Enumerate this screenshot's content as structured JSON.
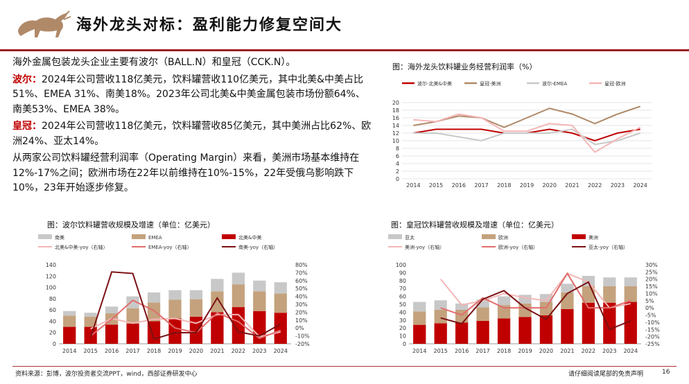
{
  "page": {
    "title": "海外龙头对标：盈利能力修复空间大",
    "paragraphs": [
      {
        "lead": "",
        "text": "海外金属包装龙头企业主要有波尔（BALL.N）和皇冠（CCK.N）。"
      },
      {
        "lead": "波尔：",
        "text": "2024年公司营收118亿美元，饮料罐营收110亿美元，其中北美&中美占比51%、EMEA 31%、南美18%。2023年公司北美&中美金属包装市场份额64%、南美53%、EMEA 38%。"
      },
      {
        "lead": "皇冠：",
        "text": "2024年公司营收118亿美元，饮料罐营收85亿美元，其中美洲占比62%、欧洲24%、亚太14%。"
      },
      {
        "lead": "",
        "text": "从两家公司饮料罐经营利润率（Operating Margin）来看，美洲市场基本维持在12%-17%之间；欧洲市场在22年以前维持在10%-15%，22年受俄乌影响跌下10%，23年开始逐步修复。"
      }
    ],
    "footer_source": "资料来源：彭博，波尔投资者交流PPT，wind，西部证券研发中心",
    "footer_disclaimer": "请仔细阅读尾部的免责声明",
    "page_number": "16",
    "colors": {
      "brand_red": "#9b2226",
      "accent": "#c00000"
    }
  },
  "chart_data": [
    {
      "type": "line",
      "title": "图：海外龙头饮料罐业务经营利润率（%）",
      "x": [
        "2014",
        "2015",
        "2016",
        "2017",
        "2018",
        "2019",
        "2020",
        "2021",
        "2022",
        "2023",
        "2024"
      ],
      "ylim": [
        0,
        20
      ],
      "yticks": [
        0,
        2,
        4,
        6,
        8,
        10,
        12,
        14,
        16,
        18,
        20
      ],
      "series": [
        {
          "name": "波尔-北美&中美",
          "color": "#c00000",
          "values": [
            12,
            13,
            13,
            13,
            12,
            12,
            13,
            12,
            10,
            12,
            13
          ]
        },
        {
          "name": "皇冠-美洲",
          "color": "#b08968",
          "values": [
            14,
            15,
            16.5,
            16,
            13.5,
            16,
            18.5,
            17,
            14.5,
            17,
            19
          ]
        },
        {
          "name": "波尔-EMEA",
          "color": "#c8c8c8",
          "values": [
            12,
            12,
            11,
            10,
            12,
            12,
            12,
            13,
            9,
            10,
            12
          ]
        },
        {
          "name": "皇冠-欧洲",
          "color": "#f4b6b6",
          "values": [
            15.5,
            15,
            17,
            16,
            12.5,
            12.5,
            14.5,
            14,
            7,
            10.5,
            13.5
          ]
        }
      ]
    },
    {
      "type": "bar",
      "title": "图：波尔饮料罐营收规模及增速（单位：亿美元）",
      "categories": [
        "2014",
        "2015",
        "2016",
        "2017",
        "2018",
        "2019",
        "2020",
        "2021",
        "2022",
        "2023",
        "2024"
      ],
      "ylim": [
        0,
        140
      ],
      "yticks": [
        0,
        20,
        40,
        60,
        80,
        100,
        120,
        140
      ],
      "y2lim": [
        -20,
        80
      ],
      "y2ticks": [
        "-20%",
        "-10%",
        "0%",
        "10%",
        "20%",
        "30%",
        "40%",
        "50%",
        "60%",
        "70%",
        "80%"
      ],
      "stack_series": [
        {
          "name": "北美&中美",
          "color": "#c00000",
          "values": [
            30,
            30,
            34,
            36,
            40,
            45,
            48,
            56,
            65,
            58,
            55
          ]
        },
        {
          "name": "EMEA",
          "color": "#c4a27d",
          "values": [
            20,
            18,
            20,
            27,
            33,
            33,
            31,
            37,
            40,
            35,
            34
          ]
        },
        {
          "name": "南美",
          "color": "#c8c8c8",
          "values": [
            8,
            7,
            12,
            21,
            18,
            17,
            16,
            22,
            21,
            19,
            20
          ]
        }
      ],
      "line_series": [
        {
          "name": "北美&中美-yoy（右轴）",
          "color": "#f4b6b6",
          "values": [
            null,
            -1,
            12,
            6,
            11,
            12,
            6,
            17,
            17,
            -11,
            -5
          ]
        },
        {
          "name": "EMEA-yoy（右轴）",
          "color": "#e26d6d",
          "values": [
            null,
            -10,
            11,
            35,
            22,
            0,
            -6,
            19,
            8,
            -13,
            -3
          ]
        },
        {
          "name": "南美-yoy（右轴）",
          "color": "#7b1113",
          "values": [
            null,
            -12,
            71,
            69,
            -14,
            -6,
            -6,
            38,
            -5,
            -10,
            5
          ]
        }
      ]
    },
    {
      "type": "bar",
      "title": "图：皇冠饮料罐营收规模及增速（单位：亿美元）",
      "categories": [
        "2014",
        "2015",
        "2016",
        "2017",
        "2018",
        "2019",
        "2020",
        "2021",
        "2022",
        "2023",
        "2024"
      ],
      "ylim": [
        0,
        100
      ],
      "yticks": [
        0,
        10,
        20,
        30,
        40,
        50,
        60,
        70,
        80,
        90,
        100
      ],
      "y2lim": [
        -25,
        30
      ],
      "y2ticks": [
        "-25%",
        "-20%",
        "-15%",
        "-10%",
        "-5%",
        "0%",
        "5%",
        "10%",
        "15%",
        "20%",
        "25%",
        "30%"
      ],
      "stack_series": [
        {
          "name": "美洲",
          "color": "#c00000",
          "values": [
            24,
            26,
            27,
            29,
            32,
            34,
            36,
            44,
            52,
            52,
            53
          ]
        },
        {
          "name": "欧洲",
          "color": "#c4a27d",
          "values": [
            17,
            17,
            16,
            17,
            17,
            17,
            17,
            21,
            21,
            21,
            20
          ]
        },
        {
          "name": "亚太",
          "color": "#c8c8c8",
          "values": [
            12,
            12,
            8,
            10,
            11,
            11,
            10,
            11,
            13,
            11,
            11
          ]
        }
      ],
      "line_series": [
        {
          "name": "美洲-yoy（右轴）",
          "color": "#f4b6b6",
          "values": [
            null,
            20,
            2,
            5,
            10,
            7,
            5,
            24,
            18,
            0,
            3
          ]
        },
        {
          "name": "欧洲-yoy（右轴）",
          "color": "#e26d6d",
          "values": [
            null,
            0,
            -5,
            7,
            0,
            0,
            0,
            24,
            0,
            0,
            5
          ]
        },
        {
          "name": "亚太-yoy（右轴）",
          "color": "#7b1113",
          "values": [
            null,
            -7,
            -11,
            6,
            12,
            0,
            -8,
            10,
            18,
            -15,
            -9
          ]
        }
      ]
    }
  ]
}
